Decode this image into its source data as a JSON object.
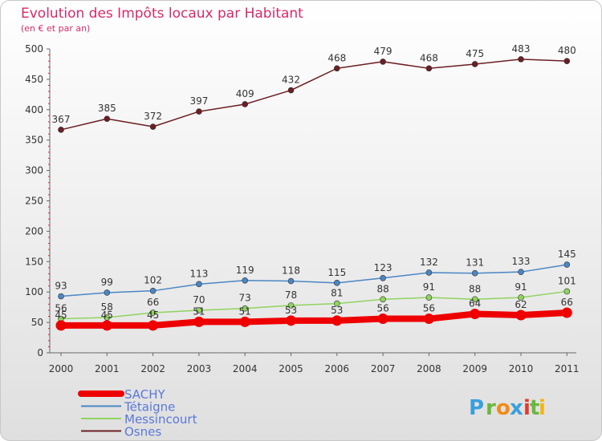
{
  "chart_data": {
    "type": "line",
    "title": "Evolution des Impôts locaux par Habitant",
    "subtitle": "(en € et par an)",
    "xlabel": "",
    "ylabel": "",
    "ylim": [
      0,
      500
    ],
    "yticks": [
      0,
      50,
      100,
      150,
      200,
      250,
      300,
      350,
      400,
      450,
      500
    ],
    "x": [
      "2000",
      "2001",
      "2002",
      "2003",
      "2004",
      "2005",
      "2006",
      "2007",
      "2008",
      "2009",
      "2010",
      "2011"
    ],
    "grid": false,
    "legend_position": "bottom-left",
    "series": [
      {
        "name": "SACHY",
        "color": "#ee0000",
        "values": [
          45,
          45,
          45,
          51,
          51,
          53,
          53,
          56,
          56,
          64,
          62,
          66
        ]
      },
      {
        "name": "Tétaigne",
        "color": "#4a86c4",
        "values": [
          93,
          99,
          102,
          113,
          119,
          118,
          115,
          123,
          132,
          131,
          133,
          145
        ]
      },
      {
        "name": "Messincourt",
        "color": "#8fd45e",
        "values": [
          56,
          58,
          66,
          70,
          73,
          78,
          81,
          88,
          91,
          88,
          91,
          101
        ]
      },
      {
        "name": "Osnes",
        "color": "#6b1f24",
        "values": [
          367,
          385,
          372,
          397,
          409,
          432,
          468,
          479,
          468,
          475,
          483,
          480
        ]
      }
    ]
  },
  "branding": {
    "logo_text": "Proxiti",
    "letters": [
      "P",
      "r",
      "o",
      "x",
      "i",
      "t",
      "i"
    ],
    "letter_colors": [
      "#3aa0dc",
      "#6bb83c",
      "#f28c18",
      "#3aa0dc",
      "#e23c2c",
      "#6bb83c",
      "#f2b418"
    ]
  }
}
